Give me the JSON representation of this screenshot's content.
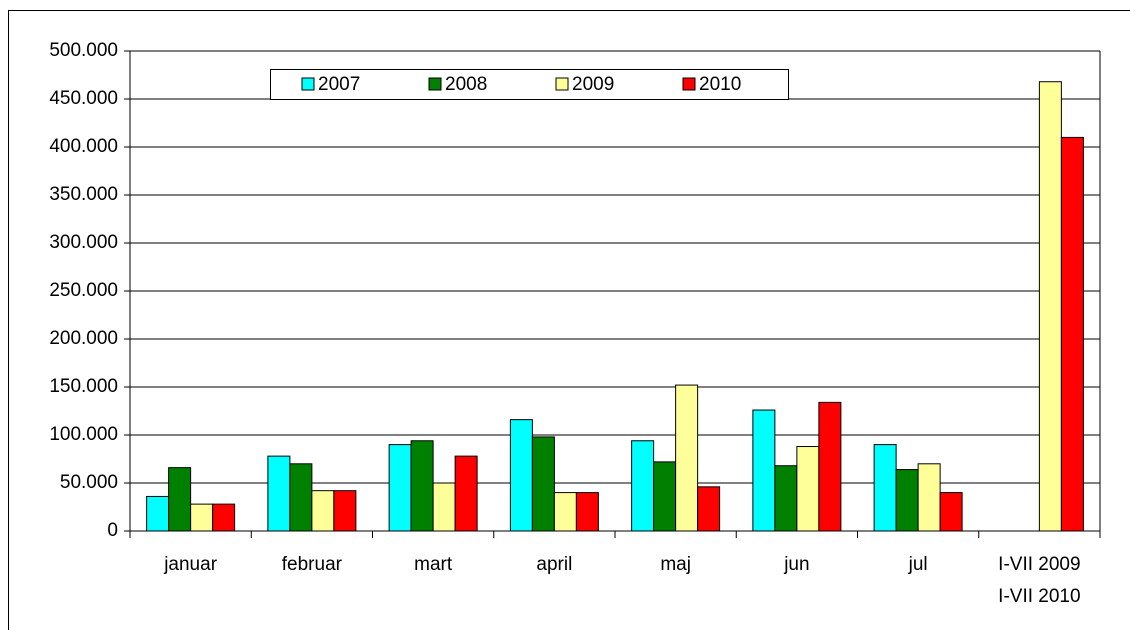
{
  "chart_data": {
    "type": "bar",
    "categories": [
      "januar",
      "februar",
      "mart",
      "april",
      "maj",
      "jun",
      "jul",
      "I-VII 2009\nI-VII 2010"
    ],
    "series": [
      {
        "name": "2007",
        "color": "#00ffff",
        "values": [
          36000,
          78000,
          90000,
          116000,
          94000,
          126000,
          90000,
          null
        ]
      },
      {
        "name": "2008",
        "color": "#008000",
        "values": [
          66000,
          70000,
          94000,
          98000,
          72000,
          68000,
          64000,
          null
        ]
      },
      {
        "name": "2009",
        "color": "#ffff99",
        "values": [
          28000,
          42000,
          50000,
          40000,
          152000,
          88000,
          70000,
          468000
        ]
      },
      {
        "name": "2010",
        "color": "#ff0000",
        "values": [
          28000,
          42000,
          78000,
          40000,
          46000,
          134000,
          40000,
          410000
        ]
      }
    ],
    "ylim": [
      0,
      500000
    ],
    "yticks": [
      0,
      {
        "value": 50000,
        "label": "50.000"
      },
      {
        "value": 100000,
        "label": "100.000"
      },
      {
        "value": 150000,
        "label": "150.000"
      },
      {
        "value": 200000,
        "label": "200.000"
      },
      {
        "value": 250000,
        "label": "250.000"
      },
      {
        "value": 300000,
        "label": "300.000"
      },
      {
        "value": 350000,
        "label": "350.000"
      },
      {
        "value": 400000,
        "label": "400.000"
      },
      {
        "value": 450000,
        "label": "450.000"
      },
      {
        "value": 500000,
        "label": "500.000"
      }
    ],
    "grid": true,
    "legend": "top"
  }
}
